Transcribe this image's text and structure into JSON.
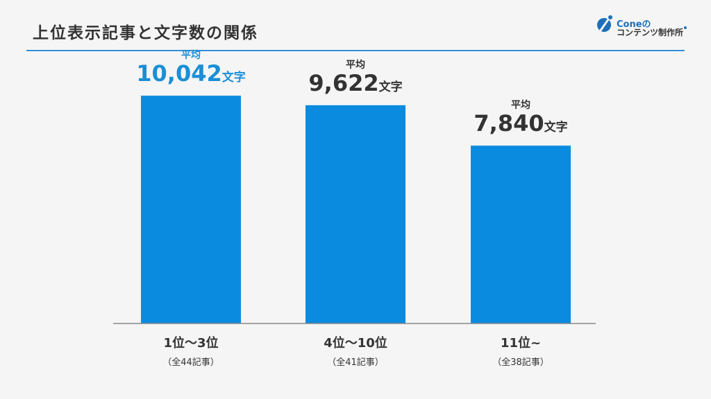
{
  "title": "上位表示記事と文字数の関係",
  "logo": {
    "brand": "Coneの",
    "sub": "コンテンツ制作所"
  },
  "colors": {
    "bar": "#0a8be0",
    "highlight": "#1a8fd8",
    "text": "#333333",
    "rule": "#2f8fd8",
    "background": "#f5f5f5"
  },
  "chart_data": {
    "type": "bar",
    "categories": [
      "1位〜3位",
      "4位〜10位",
      "11位~"
    ],
    "category_sublabels": [
      "（全44記事）",
      "（全41記事）",
      "（全38記事）"
    ],
    "values": [
      10042,
      9622,
      7840
    ],
    "value_labels": [
      "10,042",
      "9,622",
      "7,840"
    ],
    "value_prefix": "平均",
    "value_unit": "文字",
    "highlight_index": 0,
    "ylim": [
      0,
      12000
    ],
    "grid": false,
    "legend": "none"
  }
}
